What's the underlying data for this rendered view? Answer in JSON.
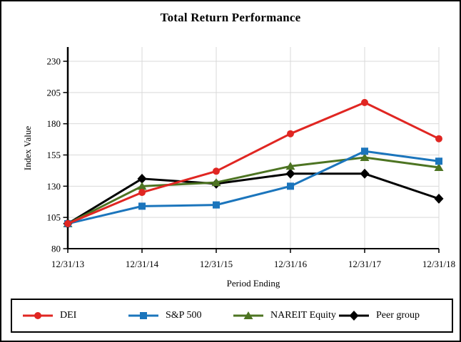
{
  "chart_data": {
    "type": "line",
    "title": "Total Return Performance",
    "xlabel": "Period Ending",
    "ylabel": "Index Value",
    "categories": [
      "12/31/13",
      "12/31/14",
      "12/31/15",
      "12/31/16",
      "12/31/17",
      "12/31/18"
    ],
    "yticks": [
      80,
      105,
      130,
      155,
      180,
      205,
      230
    ],
    "ylim": [
      80,
      242
    ],
    "grid": true,
    "legend_position": "bottom",
    "series": [
      {
        "name": "DEI",
        "marker": "circle",
        "color": "#e02622",
        "values": [
          100,
          125,
          142,
          172,
          197,
          168
        ]
      },
      {
        "name": "S&P 500",
        "marker": "square",
        "color": "#1b75bc",
        "values": [
          100,
          114,
          115,
          130,
          158,
          150
        ]
      },
      {
        "name": "NAREIT Equity",
        "marker": "triangle",
        "color": "#4d7422",
        "values": [
          100,
          130,
          133,
          146,
          153,
          145
        ]
      },
      {
        "name": "Peer group",
        "marker": "diamond",
        "color": "#000000",
        "values": [
          100,
          136,
          132,
          140,
          140,
          120
        ]
      }
    ],
    "gridline_color": "#d9d9d9",
    "axis_color": "#000000"
  }
}
